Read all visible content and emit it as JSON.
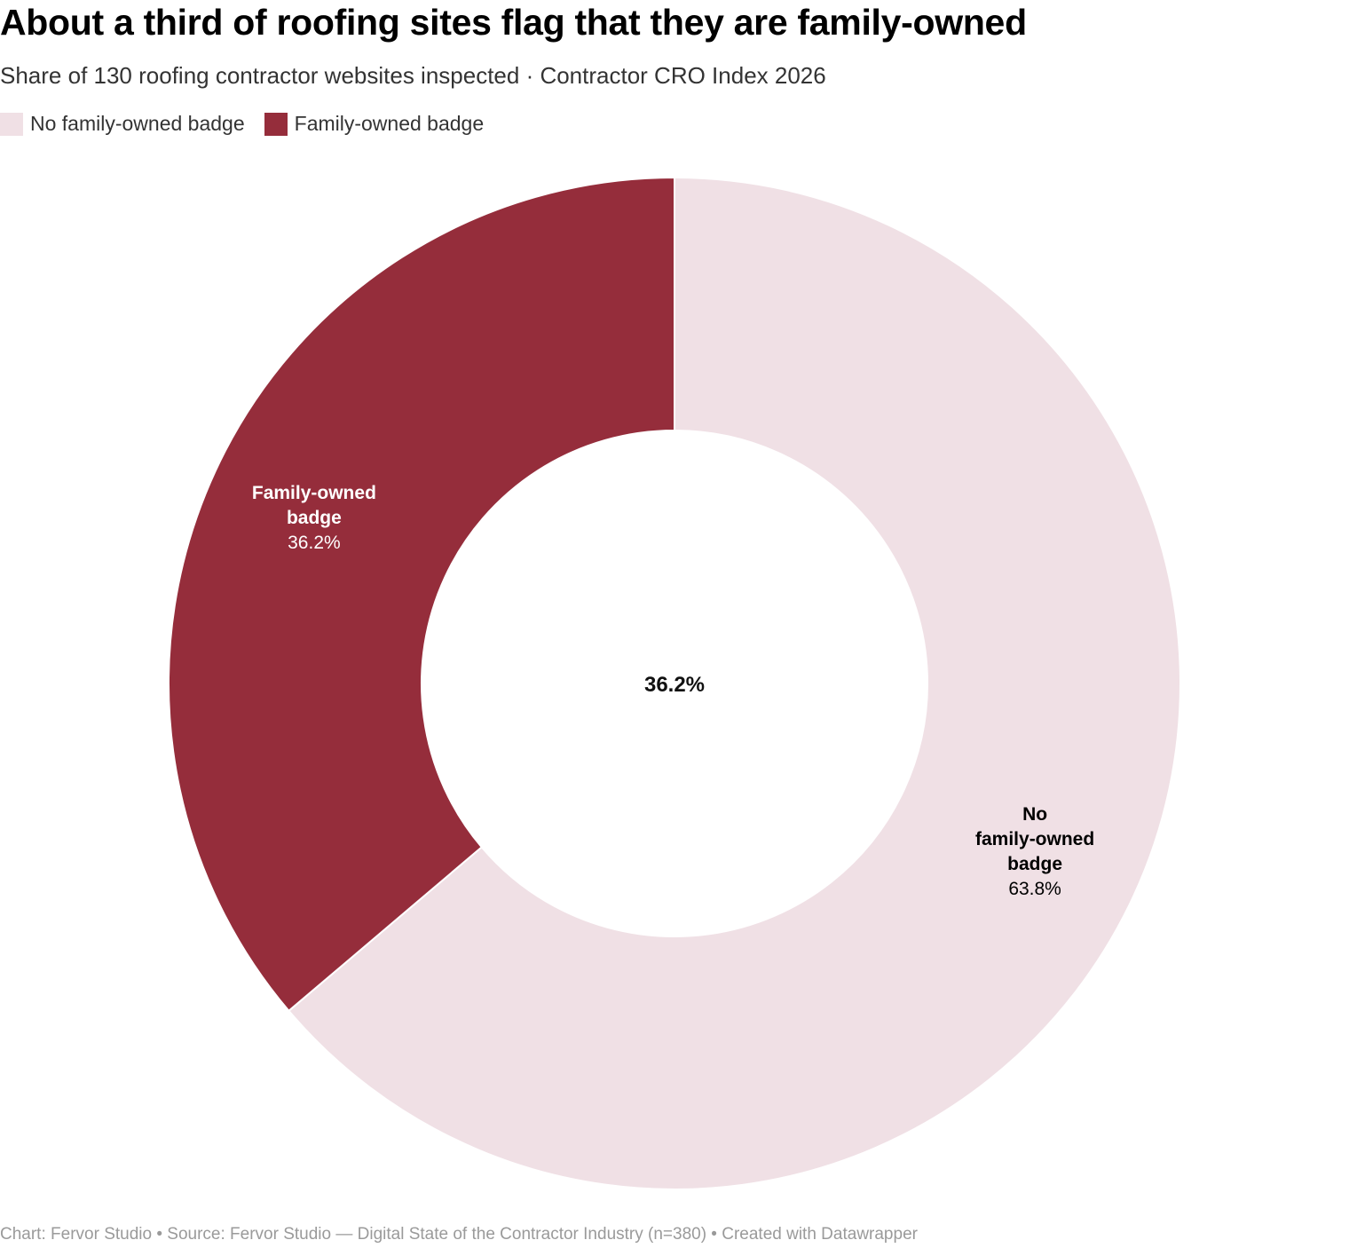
{
  "chart_data": {
    "type": "pie",
    "title": "About a third of roofing sites flag that they are family-owned",
    "subtitle": "Share of 130 roofing contractor websites inspected · Contractor CRO Index 2026",
    "legend_position": "top-left",
    "center_label": "36.2%",
    "slices": [
      {
        "name": "No family-owned badge",
        "value": 63.8,
        "value_label": "63.8%",
        "label_lines": [
          "No",
          "family-owned",
          "badge"
        ],
        "color": "#f0e0e5",
        "label_color": "#000000"
      },
      {
        "name": "Family-owned badge",
        "value": 36.2,
        "value_label": "36.2%",
        "label_lines": [
          "Family-owned",
          "badge"
        ],
        "color": "#952d3b",
        "label_color": "#ffffff"
      }
    ]
  },
  "footer": {
    "text": "Chart: Fervor Studio • Source: Fervor Studio — Digital State of the Contractor Industry (n=380) • Created with Datawrapper"
  }
}
